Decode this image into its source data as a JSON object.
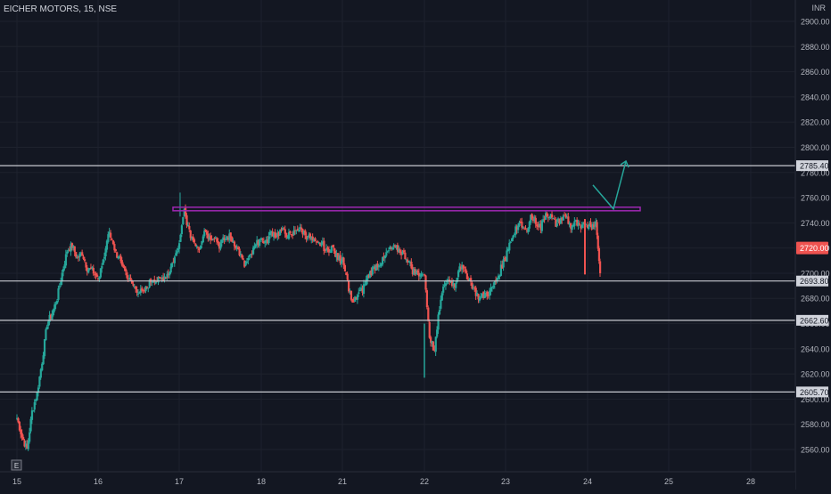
{
  "header": {
    "symbol_label": "EICHER MOTORS, 15, NSE"
  },
  "colors": {
    "background": "#131722",
    "up": "#26a69a",
    "down": "#ef5350",
    "grid": "#1e222d",
    "axis_text": "#b2b5be",
    "hline": "#c8cad0",
    "resistance": "#9c27b0",
    "arrow": "#26a69a"
  },
  "chart_data": {
    "type": "candlestick",
    "currency_label": "INR",
    "ylim": [
      2548,
      2912
    ],
    "y_ticks": [
      "2560.00",
      "2580.00",
      "2600.00",
      "2620.00",
      "2640.00",
      "2660.00",
      "2680.00",
      "2700.00",
      "2720.00",
      "2740.00",
      "2760.00",
      "2780.00",
      "2800.00",
      "2820.00",
      "2840.00",
      "2860.00",
      "2880.00",
      "2900.00"
    ],
    "x_ticks": [
      "15",
      "16",
      "17",
      "18",
      "21",
      "22",
      "23",
      "24",
      "25",
      "28"
    ],
    "current_price": "2720.00",
    "levels": [
      {
        "label": "2785.40",
        "value": 2785.4
      },
      {
        "label": "2693.80",
        "value": 2693.8
      },
      {
        "label": "2662.60",
        "value": 2662.6
      },
      {
        "label": "2605.70",
        "value": 2605.7
      }
    ],
    "resistance_level": 2751,
    "event_marker": "E",
    "projection_path": [
      2770,
      2751,
      2789
    ],
    "sessions": [
      {
        "day": "15",
        "close_path": [
          2585,
          2570,
          2560,
          2590,
          2605,
          2630,
          2660,
          2668,
          2680,
          2700,
          2718,
          2722,
          2712,
          2716,
          2704,
          2702,
          2697
        ]
      },
      {
        "day": "16",
        "close_path": [
          2697,
          2708,
          2733,
          2722,
          2712,
          2706,
          2696,
          2690,
          2686,
          2684,
          2691,
          2696,
          2694,
          2697,
          2700,
          2710,
          2720
        ]
      },
      {
        "day": "17",
        "close_path": [
          2722,
          2750,
          2732,
          2725,
          2720,
          2735,
          2728,
          2730,
          2722,
          2727,
          2729,
          2724,
          2716,
          2706,
          2712,
          2720,
          2727
        ]
      },
      {
        "day": "18",
        "close_path": [
          2727,
          2724,
          2733,
          2730,
          2734,
          2731,
          2729,
          2736,
          2734,
          2730,
          2727,
          2722,
          2724,
          2717,
          2721,
          2713,
          2710
        ]
      },
      {
        "day": "21",
        "close_path": [
          2710,
          2693,
          2675,
          2683,
          2687,
          2697,
          2703,
          2707,
          2710,
          2717,
          2720,
          2719,
          2716,
          2711,
          2702,
          2700,
          2699
        ]
      },
      {
        "day": "22",
        "close_path": [
          2699,
          2650,
          2638,
          2673,
          2692,
          2695,
          2690,
          2707,
          2701,
          2695,
          2686,
          2680,
          2683,
          2685,
          2692,
          2701,
          2712
        ]
      },
      {
        "day": "23",
        "close_path": [
          2712,
          2726,
          2736,
          2738,
          2733,
          2745,
          2741,
          2736,
          2748,
          2745,
          2739,
          2743,
          2745,
          2737,
          2740,
          2735,
          2739
        ]
      },
      {
        "day": "24",
        "close_path": [
          2739,
          2737,
          2739,
          2700
        ]
      }
    ]
  }
}
